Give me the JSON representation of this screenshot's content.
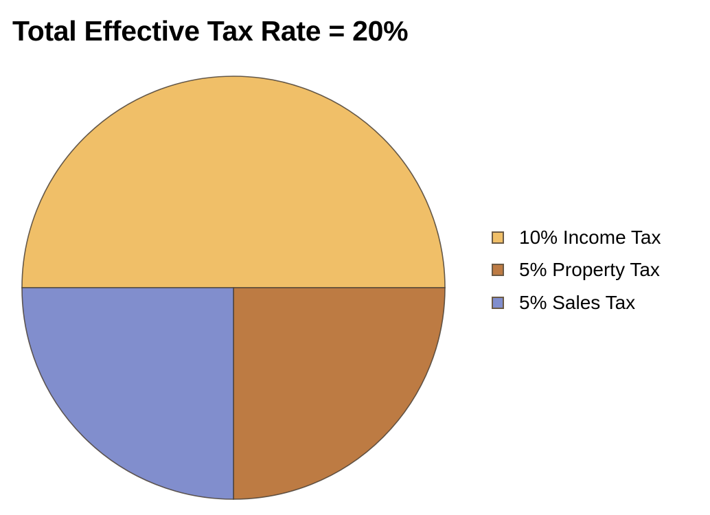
{
  "chart_data": {
    "type": "pie",
    "title": "Total Effective Tax Rate = 20%",
    "categories": [
      "10% Income Tax",
      "5% Property Tax",
      "5% Sales Tax"
    ],
    "values": [
      10,
      5,
      5
    ],
    "colors": [
      "#F0BF68",
      "#BD7B43",
      "#818ECD"
    ],
    "legend_position": "right",
    "start_angle_deg": 180,
    "direction": "clockwise"
  },
  "title": "Total Effective Tax Rate = 20%",
  "legend": {
    "items": [
      {
        "label": "10% Income Tax",
        "color": "#F0BF68"
      },
      {
        "label": "5% Property Tax",
        "color": "#BD7B43"
      },
      {
        "label": "5% Sales Tax",
        "color": "#818ECD"
      }
    ]
  }
}
